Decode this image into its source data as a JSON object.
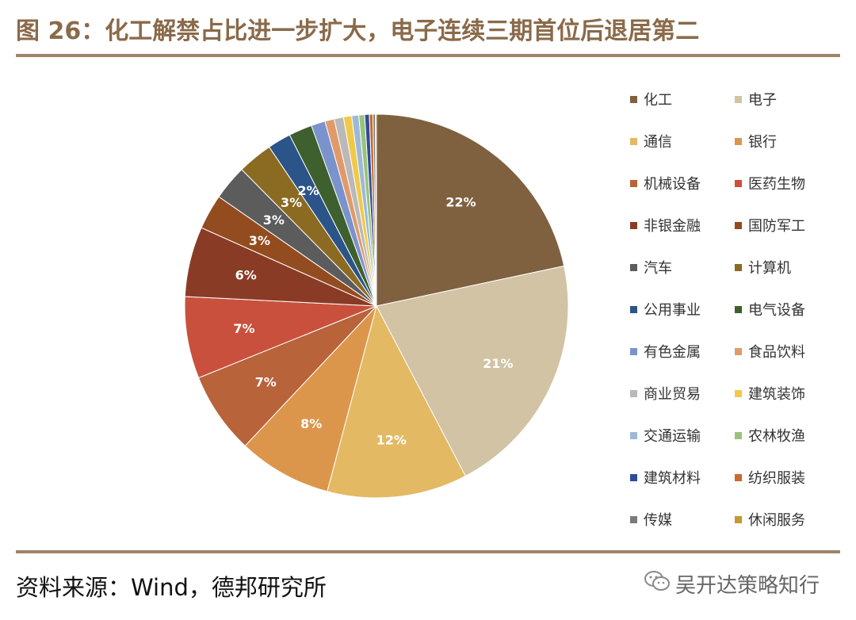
{
  "title": "图 26：化工解禁占比进一步扩大，电子连续三期首位后退居第二",
  "source": "资料来源：Wind，德邦研究所",
  "watermark": "吴开达策略知行",
  "watermark_icon": "wechat-icon",
  "chart_data": {
    "type": "pie",
    "categories": [
      "化工",
      "电子",
      "通信",
      "银行",
      "机械设备",
      "医药生物",
      "非银金融",
      "国防军工",
      "汽车",
      "计算机",
      "公用事业",
      "电气设备",
      "有色金属",
      "食品饮料",
      "商业贸易",
      "建筑装饰",
      "交通运输",
      "农林牧渔",
      "建筑材料",
      "纺织服装",
      "传媒",
      "休闲服务"
    ],
    "values": [
      22.0,
      21.0,
      12.0,
      8.0,
      7.0,
      7.0,
      6.0,
      3.0,
      3.0,
      3.0,
      2.0,
      2.0,
      1.2,
      0.8,
      0.8,
      0.7,
      0.6,
      0.5,
      0.4,
      0.3,
      0.2,
      0.1
    ],
    "labels": [
      "22%",
      "21%",
      "12%",
      "8%",
      "7%",
      "7%",
      "6%",
      "3%",
      "3%",
      "3%",
      "2%",
      "",
      "",
      "",
      "",
      "",
      "",
      "",
      "",
      "",
      "",
      ""
    ],
    "colors": [
      "#7f6140",
      "#d1c3a3",
      "#e3b963",
      "#dc964b",
      "#b8633a",
      "#c9503d",
      "#8a3b26",
      "#934c1f",
      "#5c5c5c",
      "#8b6a22",
      "#2b5488",
      "#3e5f2e",
      "#7a93cc",
      "#e09a6a",
      "#b9b9b9",
      "#f0c94a",
      "#9cb9d8",
      "#9bc27c",
      "#2e4c9a",
      "#c86b2c",
      "#7a7a7a",
      "#c2992e"
    ],
    "legend_position": "right"
  }
}
